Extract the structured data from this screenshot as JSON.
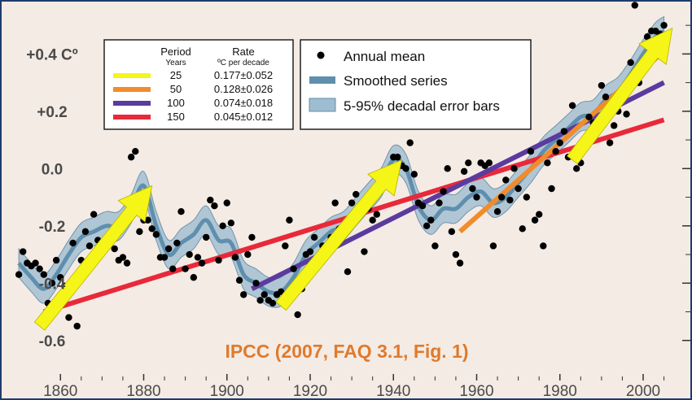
{
  "chart_data": {
    "type": "scatter",
    "caption": "IPCC (2007, FAQ 3.1, Fig. 1)",
    "xlim": [
      1849,
      2009
    ],
    "ylim": [
      -0.7,
      0.56
    ],
    "x_ticks": [
      1860,
      1880,
      1900,
      1920,
      1940,
      1960,
      1980,
      2000
    ],
    "y_ticks": [
      {
        "value": 0.4,
        "label": "+0.4 Cº"
      },
      {
        "value": 0.2,
        "label": "+0.2"
      },
      {
        "value": 0.0,
        "label": "0.0"
      },
      {
        "value": -0.2,
        "label": "-0.2"
      },
      {
        "value": -0.4,
        "label": "-0.4"
      },
      {
        "value": -0.6,
        "label": "-0.6"
      }
    ],
    "colors": {
      "background": "#f4ebe4",
      "dots": "#000000",
      "smooth": "#5f8fae",
      "band": "#9fbdd0",
      "frame": "#1f3b6e"
    },
    "legend": {
      "placement": "top-center",
      "entries": [
        {
          "label": "Annual mean",
          "kind": "dot"
        },
        {
          "label": "Smoothed series",
          "kind": "line"
        },
        {
          "label": "5-95% decadal error bars",
          "kind": "band"
        }
      ]
    },
    "trend_table": {
      "placement": "top-left",
      "header_period": "Period",
      "header_period_sub": "Years",
      "header_rate": "Rate",
      "header_rate_sub": "ºC per decade",
      "rows": [
        {
          "period": "25",
          "rate": "0.177±0.052",
          "color": "#f5f518"
        },
        {
          "period": "50",
          "rate": "0.128±0.026",
          "color": "#f08c2c"
        },
        {
          "period": "100",
          "rate": "0.074±0.018",
          "color": "#5b3b9e"
        },
        {
          "period": "150",
          "rate": "0.045±0.012",
          "color": "#e8293a"
        }
      ]
    },
    "trend_lines": [
      {
        "period": "150",
        "color": "#e8293a",
        "x": [
          1856,
          2005
        ],
        "y": [
          -0.5,
          0.17
        ]
      },
      {
        "period": "100",
        "color": "#5b3b9e",
        "x": [
          1906,
          2005
        ],
        "y": [
          -0.42,
          0.3
        ]
      },
      {
        "period": "50",
        "color": "#f08c2c",
        "x": [
          1956,
          2005
        ],
        "y": [
          -0.22,
          0.41
        ]
      }
    ],
    "arrows": [
      {
        "color": "#f5f518",
        "x": [
          1855,
          1882
        ],
        "y": [
          -0.55,
          -0.06
        ]
      },
      {
        "color": "#f5f518",
        "x": [
          1913,
          1942
        ],
        "y": [
          -0.48,
          0.03
        ]
      },
      {
        "color": "#f5f518",
        "x": [
          1983,
          2007
        ],
        "y": [
          0.03,
          0.49
        ]
      }
    ],
    "smoothed_series": {
      "x": [
        1850,
        1853,
        1856,
        1859,
        1862,
        1865,
        1868,
        1871,
        1874,
        1877,
        1880,
        1883,
        1886,
        1889,
        1892,
        1895,
        1898,
        1901,
        1904,
        1907,
        1910,
        1913,
        1916,
        1919,
        1922,
        1925,
        1928,
        1931,
        1934,
        1937,
        1940,
        1943,
        1946,
        1949,
        1952,
        1955,
        1958,
        1961,
        1964,
        1967,
        1970,
        1973,
        1976,
        1979,
        1982,
        1985,
        1988,
        1991,
        1994,
        1997,
        2000,
        2003,
        2005
      ],
      "y": [
        -0.33,
        -0.38,
        -0.42,
        -0.37,
        -0.3,
        -0.24,
        -0.22,
        -0.2,
        -0.2,
        -0.14,
        -0.06,
        -0.2,
        -0.3,
        -0.26,
        -0.23,
        -0.18,
        -0.25,
        -0.26,
        -0.37,
        -0.4,
        -0.43,
        -0.43,
        -0.38,
        -0.3,
        -0.26,
        -0.22,
        -0.2,
        -0.15,
        -0.1,
        -0.05,
        0.03,
        0.0,
        -0.13,
        -0.18,
        -0.14,
        -0.14,
        -0.1,
        -0.08,
        -0.12,
        -0.1,
        -0.05,
        0.0,
        0.06,
        0.1,
        0.14,
        0.18,
        0.19,
        0.24,
        0.27,
        0.33,
        0.4,
        0.46,
        0.48
      ],
      "band_halfwidth": 0.05
    },
    "annual_mean": {
      "x": [
        1850,
        1851,
        1852,
        1853,
        1854,
        1855,
        1856,
        1857,
        1858,
        1859,
        1860,
        1861,
        1862,
        1863,
        1864,
        1865,
        1866,
        1867,
        1868,
        1869,
        1870,
        1871,
        1872,
        1873,
        1874,
        1875,
        1876,
        1877,
        1878,
        1879,
        1880,
        1881,
        1882,
        1883,
        1884,
        1885,
        1886,
        1887,
        1888,
        1889,
        1890,
        1891,
        1892,
        1893,
        1894,
        1895,
        1896,
        1897,
        1898,
        1899,
        1900,
        1901,
        1902,
        1903,
        1904,
        1905,
        1906,
        1907,
        1908,
        1909,
        1910,
        1911,
        1912,
        1913,
        1914,
        1915,
        1916,
        1917,
        1918,
        1919,
        1920,
        1921,
        1922,
        1923,
        1924,
        1925,
        1926,
        1927,
        1928,
        1929,
        1930,
        1931,
        1932,
        1933,
        1934,
        1935,
        1936,
        1937,
        1938,
        1939,
        1940,
        1941,
        1942,
        1943,
        1944,
        1945,
        1946,
        1947,
        1948,
        1949,
        1950,
        1951,
        1952,
        1953,
        1954,
        1955,
        1956,
        1957,
        1958,
        1959,
        1960,
        1961,
        1962,
        1963,
        1964,
        1965,
        1966,
        1967,
        1968,
        1969,
        1970,
        1971,
        1972,
        1973,
        1974,
        1975,
        1976,
        1977,
        1978,
        1979,
        1980,
        1981,
        1982,
        1983,
        1984,
        1985,
        1986,
        1987,
        1988,
        1989,
        1990,
        1991,
        1992,
        1993,
        1994,
        1995,
        1996,
        1997,
        1998,
        1999,
        2000,
        2001,
        2002,
        2003,
        2004,
        2005
      ],
      "y": [
        -0.37,
        -0.29,
        -0.33,
        -0.34,
        -0.33,
        -0.35,
        -0.37,
        -0.47,
        -0.4,
        -0.32,
        -0.38,
        -0.41,
        -0.52,
        -0.26,
        -0.55,
        -0.32,
        -0.22,
        -0.27,
        -0.16,
        -0.25,
        -0.28,
        -0.27,
        -0.26,
        -0.28,
        -0.32,
        -0.31,
        -0.33,
        0.04,
        0.06,
        -0.22,
        -0.18,
        -0.18,
        -0.21,
        -0.23,
        -0.31,
        -0.31,
        -0.28,
        -0.35,
        -0.26,
        -0.15,
        -0.35,
        -0.3,
        -0.38,
        -0.31,
        -0.33,
        -0.24,
        -0.11,
        -0.13,
        -0.32,
        -0.2,
        -0.12,
        -0.19,
        -0.31,
        -0.39,
        -0.44,
        -0.3,
        -0.24,
        -0.4,
        -0.46,
        -0.44,
        -0.46,
        -0.47,
        -0.44,
        -0.43,
        -0.27,
        -0.18,
        -0.35,
        -0.51,
        -0.42,
        -0.3,
        -0.29,
        -0.24,
        -0.31,
        -0.27,
        -0.3,
        -0.24,
        -0.12,
        -0.21,
        -0.22,
        -0.36,
        -0.12,
        -0.09,
        -0.13,
        -0.29,
        -0.14,
        -0.18,
        -0.16,
        -0.05,
        -0.02,
        -0.03,
        0.04,
        0.04,
        0.01,
        0.0,
        0.09,
        -0.02,
        -0.12,
        -0.13,
        -0.2,
        -0.18,
        -0.27,
        -0.12,
        -0.08,
        0.0,
        -0.22,
        -0.3,
        -0.33,
        -0.01,
        0.02,
        -0.07,
        -0.1,
        0.02,
        0.01,
        0.02,
        -0.27,
        -0.15,
        -0.1,
        -0.04,
        -0.11,
        0.0,
        -0.07,
        -0.21,
        -0.1,
        0.06,
        -0.18,
        -0.16,
        -0.27,
        0.02,
        -0.07,
        0.06,
        0.09,
        0.13,
        0.04,
        0.22,
        0.0,
        0.02,
        0.07,
        0.18,
        0.16,
        0.13,
        0.29,
        0.25,
        0.09,
        0.15,
        0.2,
        0.25,
        0.19,
        0.37,
        0.57,
        0.3,
        0.34,
        0.46,
        0.48,
        0.48,
        0.47,
        0.5
      ]
    }
  }
}
